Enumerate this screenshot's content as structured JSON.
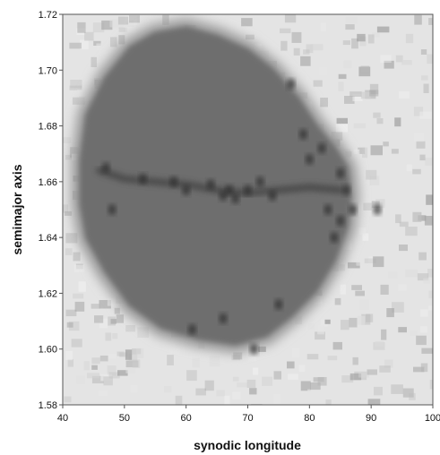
{
  "chart_data": {
    "type": "heatmap",
    "title": "",
    "xlabel": "synodic longitude",
    "ylabel": "semimajor axis",
    "xlim": [
      40,
      100
    ],
    "ylim": [
      1.58,
      1.72
    ],
    "xticks": [
      "40",
      "50",
      "60",
      "70",
      "80",
      "90",
      "100"
    ],
    "yticks": [
      "1.58",
      "1.60",
      "1.62",
      "1.64",
      "1.66",
      "1.68",
      "1.70",
      "1.72"
    ],
    "grid": false,
    "legend": "none",
    "colormap": "grayscale (dark = high density)",
    "region_boundary": [
      [
        43,
        1.668
      ],
      [
        44,
        1.684
      ],
      [
        47,
        1.697
      ],
      [
        51,
        1.708
      ],
      [
        55,
        1.713
      ],
      [
        60,
        1.715
      ],
      [
        65,
        1.712
      ],
      [
        70,
        1.707
      ],
      [
        74,
        1.7
      ],
      [
        78,
        1.69
      ],
      [
        81,
        1.68
      ],
      [
        84,
        1.672
      ],
      [
        86,
        1.665
      ],
      [
        86.5,
        1.655
      ],
      [
        86,
        1.644
      ],
      [
        84,
        1.632
      ],
      [
        81,
        1.621
      ],
      [
        77,
        1.612
      ],
      [
        73,
        1.605
      ],
      [
        68,
        1.602
      ],
      [
        62,
        1.604
      ],
      [
        56,
        1.608
      ],
      [
        51,
        1.616
      ],
      [
        47,
        1.628
      ],
      [
        44,
        1.64
      ],
      [
        43,
        1.652
      ]
    ],
    "ridge": [
      [
        46,
        1.664
      ],
      [
        50,
        1.661
      ],
      [
        55,
        1.66
      ],
      [
        60,
        1.659
      ],
      [
        65,
        1.657
      ],
      [
        70,
        1.656
      ],
      [
        75,
        1.657
      ],
      [
        80,
        1.658
      ],
      [
        85,
        1.657
      ]
    ],
    "dark_spots": [
      [
        47,
        1.665
      ],
      [
        48,
        1.65
      ],
      [
        53,
        1.661
      ],
      [
        58,
        1.66
      ],
      [
        60,
        1.657
      ],
      [
        64,
        1.659
      ],
      [
        66,
        1.655
      ],
      [
        67,
        1.657
      ],
      [
        68,
        1.654
      ],
      [
        70,
        1.657
      ],
      [
        72,
        1.66
      ],
      [
        74,
        1.655
      ],
      [
        77,
        1.695
      ],
      [
        79,
        1.677
      ],
      [
        80,
        1.668
      ],
      [
        82,
        1.672
      ],
      [
        83,
        1.65
      ],
      [
        84,
        1.64
      ],
      [
        85,
        1.663
      ],
      [
        85,
        1.646
      ],
      [
        86,
        1.657
      ],
      [
        87,
        1.65
      ],
      [
        91,
        1.65
      ],
      [
        71,
        1.6
      ],
      [
        75,
        1.616
      ],
      [
        66,
        1.611
      ],
      [
        61,
        1.607
      ]
    ]
  }
}
